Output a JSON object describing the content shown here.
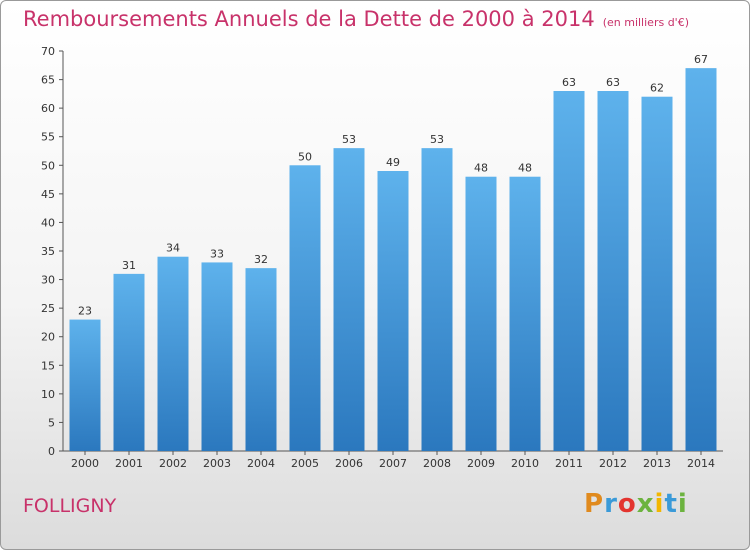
{
  "chart_data": {
    "type": "bar",
    "title": "Remboursements Annuels de la Dette de 2000 à 2014",
    "subtitle": "(en milliers d'€)",
    "categories": [
      "2000",
      "2001",
      "2002",
      "2003",
      "2004",
      "2005",
      "2006",
      "2007",
      "2008",
      "2009",
      "2010",
      "2011",
      "2012",
      "2013",
      "2014"
    ],
    "values": [
      23,
      31,
      34,
      33,
      32,
      50,
      53,
      49,
      53,
      48,
      48,
      63,
      63,
      62,
      67
    ],
    "xlabel": "",
    "ylabel": "",
    "ylim": [
      0,
      70
    ],
    "yticks": [
      0,
      5,
      10,
      15,
      20,
      25,
      30,
      35,
      40,
      45,
      50,
      55,
      60,
      65,
      70
    ],
    "grid": false,
    "bar_color": "#3d8fd6"
  },
  "footer": {
    "city": "FOLLIGNY",
    "logo": {
      "p": "P",
      "r": "r",
      "o": "o",
      "x": "x",
      "i1": "i",
      "t": "t",
      "i2": "i"
    }
  }
}
